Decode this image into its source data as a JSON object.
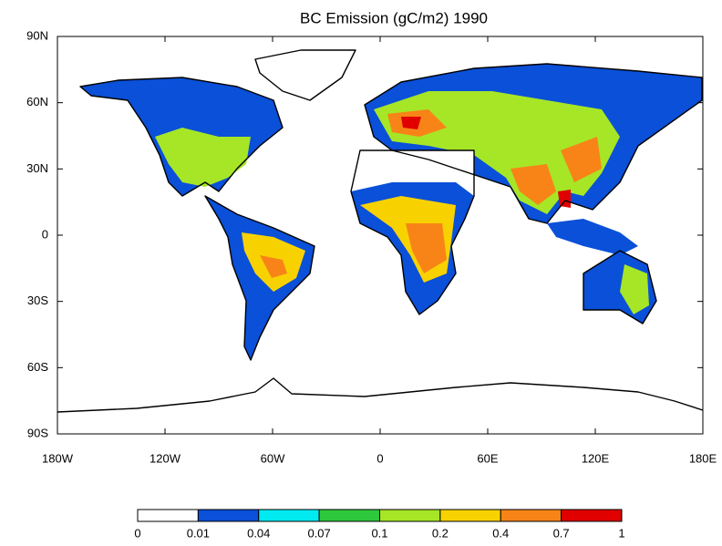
{
  "chart_data": {
    "type": "contour-map",
    "title": "BC Emission  (gC/m2) 1990",
    "xlim": [
      -180,
      180
    ],
    "ylim": [
      -90,
      90
    ],
    "xticks": [
      {
        "value": -180,
        "label": "180W"
      },
      {
        "value": -120,
        "label": "120W"
      },
      {
        "value": -60,
        "label": "60W"
      },
      0,
      {
        "value": 60,
        "label": "60E"
      },
      {
        "value": 120,
        "label": "120E"
      },
      {
        "value": 180,
        "label": "180E"
      }
    ],
    "yticks": [
      {
        "value": 90,
        "label": "90N"
      },
      {
        "value": 60,
        "label": "60N"
      },
      {
        "value": 30,
        "label": "30N"
      },
      0,
      {
        "value": -30,
        "label": "30S"
      },
      {
        "value": -60,
        "label": "60S"
      },
      {
        "value": -90,
        "label": "90S"
      }
    ],
    "colorbar": {
      "levels": [
        0,
        0.01,
        0.04,
        0.07,
        0.1,
        0.2,
        0.4,
        0.7,
        1
      ],
      "colors": [
        "#ffffff",
        "#0a50d8",
        "#00eaf0",
        "#2ec83c",
        "#a6e626",
        "#f8d200",
        "#f88418",
        "#e00000"
      ]
    }
  }
}
